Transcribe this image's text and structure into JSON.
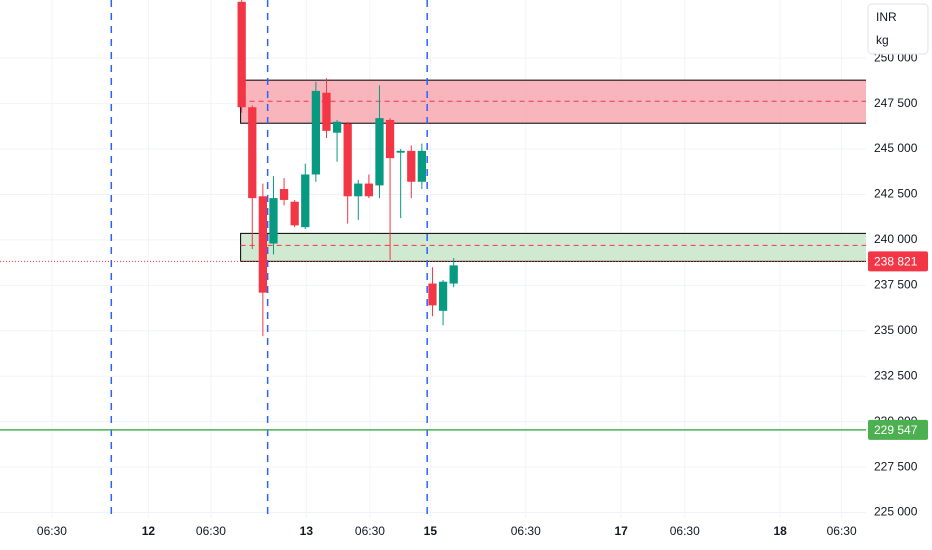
{
  "chart_data": {
    "type": "candlestick",
    "x": [
      0,
      1,
      2,
      3,
      4,
      5,
      6,
      7,
      8,
      9,
      10,
      11,
      12,
      13,
      14,
      15,
      16,
      17,
      18,
      19,
      20
    ],
    "open": [
      253100,
      247300,
      242400,
      239800,
      242800,
      242100,
      240700,
      243600,
      248100,
      245900,
      246400,
      242400,
      243100,
      243000,
      246600,
      244800,
      244900,
      243200,
      237600,
      236100,
      237600
    ],
    "high": [
      253200,
      247400,
      243100,
      243500,
      243400,
      242200,
      244200,
      248700,
      248900,
      246600,
      246500,
      243300,
      243600,
      248500,
      246700,
      245000,
      245200,
      245300,
      238500,
      237800,
      239000
    ],
    "low": [
      247000,
      239500,
      234700,
      239200,
      241900,
      240700,
      240600,
      243200,
      245600,
      244300,
      240900,
      241100,
      242300,
      242300,
      238900,
      241200,
      242300,
      242800,
      235800,
      235300,
      237400
    ],
    "close": [
      247300,
      242300,
      237100,
      242300,
      242200,
      240800,
      243600,
      248200,
      246000,
      246500,
      242400,
      243100,
      242400,
      246700,
      244500,
      244900,
      243200,
      244900,
      236400,
      237700,
      238600
    ],
    "up_color": "#089981",
    "down_color": "#f23645",
    "xlim": [
      -22.8,
      58.9
    ],
    "ylim": [
      224700,
      253200
    ],
    "xticks": [
      {
        "value": -17.9,
        "label": "06:30"
      },
      {
        "value": -8.8,
        "label": "12"
      },
      {
        "value": -2.9,
        "label": "06:30"
      },
      {
        "value": 6.1,
        "label": "13"
      },
      {
        "value": 12.1,
        "label": "06:30"
      },
      {
        "value": 17.8,
        "label": "15"
      },
      {
        "value": 26.8,
        "label": "06:30"
      },
      {
        "value": 35.8,
        "label": "17"
      },
      {
        "value": 41.8,
        "label": "06:30"
      },
      {
        "value": 50.8,
        "label": "18"
      },
      {
        "value": 56.6,
        "label": "06:30"
      }
    ],
    "yticks": [
      {
        "value": 225000,
        "label": "225 000"
      },
      {
        "value": 227500,
        "label": "227 500"
      },
      {
        "value": 230000,
        "label": "230 000"
      },
      {
        "value": 232500,
        "label": "232 500"
      },
      {
        "value": 235000,
        "label": "235 000"
      },
      {
        "value": 237500,
        "label": "237 500"
      },
      {
        "value": 240000,
        "label": "240 000"
      },
      {
        "value": 242500,
        "label": "242 500"
      },
      {
        "value": 245000,
        "label": "245 000"
      },
      {
        "value": 247500,
        "label": "247 500"
      },
      {
        "value": 250000,
        "label": "250 000"
      }
    ],
    "grid": true,
    "session_breaks": [
      -12.3,
      2.45,
      17.5
    ],
    "zones": [
      {
        "start": -0.1,
        "top": 248790,
        "bottom": 246420,
        "mid": 247630,
        "color": "#f7a8b0"
      },
      {
        "start": -0.1,
        "top": 240360,
        "bottom": 238820,
        "mid": 239700,
        "color": "#c8e6c9"
      }
    ],
    "last_price": {
      "value": 238821,
      "label": "238 821",
      "color": "#f23645"
    },
    "level": {
      "value": 229547,
      "label": "229 547",
      "color": "#4caf50"
    },
    "currency": "INR",
    "unit": "kg"
  }
}
